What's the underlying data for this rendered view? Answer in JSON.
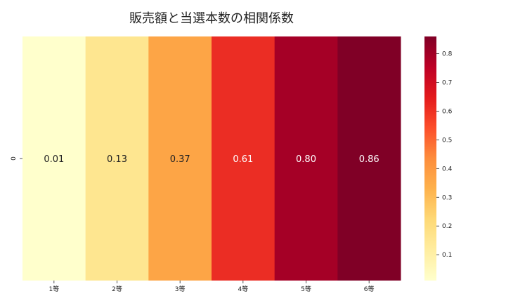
{
  "chart_data": {
    "type": "heatmap",
    "title": "販売額と当選本数の相関係数",
    "x_categories": [
      "1等",
      "2等",
      "3等",
      "4等",
      "5等",
      "6等"
    ],
    "y_categories": [
      "0"
    ],
    "values": [
      [
        0.01,
        0.13,
        0.37,
        0.61,
        0.8,
        0.86
      ]
    ],
    "value_labels": [
      "0.01",
      "0.13",
      "0.37",
      "0.61",
      "0.80",
      "0.86"
    ],
    "colormap": "YlOrRd",
    "colorbar": {
      "range": [
        0.01,
        0.86
      ],
      "ticks": [
        0.1,
        0.2,
        0.3,
        0.4,
        0.5,
        0.6,
        0.7,
        0.8
      ],
      "tick_labels": [
        "0.1",
        "0.2",
        "0.3",
        "0.4",
        "0.5",
        "0.6",
        "0.7",
        "0.8"
      ]
    },
    "colors": {
      "cells": [
        "#ffffcc",
        "#fee690",
        "#fda546",
        "#eb2d24",
        "#a50026",
        "#800026"
      ],
      "text_dark": "#222222",
      "text_light": "#ffffff"
    }
  }
}
